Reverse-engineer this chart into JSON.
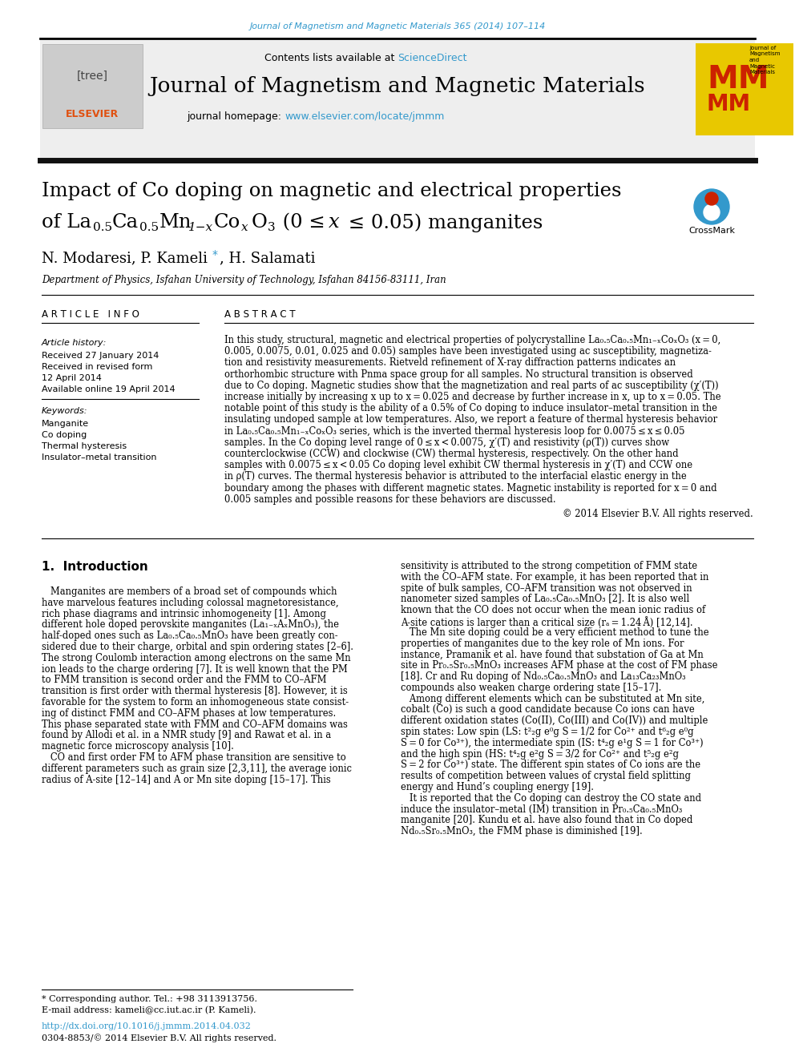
{
  "journal_ref": "Journal of Magnetism and Magnetic Materials 365 (2014) 107–114",
  "journal_ref_color": "#3399cc",
  "header_bg": "#eeeeee",
  "journal_title": "Journal of Magnetism and Magnetic Materials",
  "homepage_label": "journal homepage:",
  "homepage_url": "www.elsevier.com/locate/jmmm",
  "homepage_color": "#3399cc",
  "article_title_line1": "Impact of Co doping on magnetic and electrical properties",
  "affiliation": "Department of Physics, Isfahan University of Technology, Isfahan 84156-83111, Iran",
  "article_info_header": "A R T I C L E   I N F O",
  "abstract_header": "A B S T R A C T",
  "article_history_label": "Article history:",
  "received_label": "Received 27 January 2014",
  "revised_label": "Received in revised form",
  "revised_date": "12 April 2014",
  "available_label": "Available online 19 April 2014",
  "keywords_label": "Keywords:",
  "keyword1": "Manganite",
  "keyword2": "Co doping",
  "keyword3": "Thermal hysteresis",
  "keyword4": "Insulator–metal transition",
  "copyright": "© 2014 Elsevier B.V. All rights reserved.",
  "intro_header": "1.  Introduction",
  "footnote_text1": "* Corresponding author. Tel.: +98 3113913756.",
  "footnote_text2": "E-mail address: kameli@cc.iut.ac.ir (P. Kameli).",
  "doi_text": "http://dx.doi.org/10.1016/j.jmmm.2014.04.032",
  "doi_color": "#3399cc",
  "issn_text": "0304-8853/© 2014 Elsevier B.V. All rights reserved."
}
